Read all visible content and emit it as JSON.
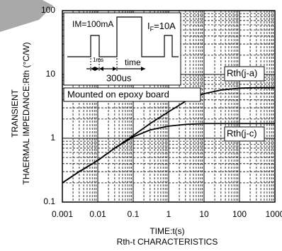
{
  "chart_data": {
    "type": "line",
    "title": "Rth-t CHARACTERISTICS",
    "x_label": "TIME:t(s)",
    "y_label_lines": [
      "TRANSIENT",
      "THAERMAL IMPEDANCE:Rth (°C/W)"
    ],
    "log_x": true,
    "log_y": true,
    "grid": true,
    "xlim": [
      0.001,
      1000
    ],
    "ylim": [
      0.1,
      100
    ],
    "xticks": [
      0.001,
      0.01,
      0.1,
      1,
      10,
      100,
      1000
    ],
    "yticks": [
      0.1,
      1,
      10,
      100
    ],
    "x": [
      0.001,
      0.003,
      0.01,
      0.03,
      0.1,
      0.3,
      1,
      3,
      10,
      30,
      100,
      300,
      1000
    ],
    "series": [
      {
        "name": "Rth(j-a)",
        "color": "#000000",
        "values": [
          0.2,
          0.3,
          0.45,
          0.7,
          1.1,
          1.7,
          2.6,
          3.8,
          5,
          5.7,
          6.1,
          6.2,
          6.2
        ]
      },
      {
        "name": "Rth(j-c)",
        "color": "#000000",
        "values": [
          0.2,
          0.3,
          0.45,
          0.7,
          1.05,
          1.35,
          1.55,
          1.65,
          1.7,
          1.7,
          1.7,
          1.7,
          1.7
        ]
      }
    ],
    "inset": {
      "im": "IM=100mA",
      "if_main": "I",
      "if_sub": "F",
      "if_rest": "=10A",
      "pulse_width": "1ms",
      "period": "time",
      "gap": "300us"
    },
    "mounting": "Mounted on epoxy board"
  }
}
